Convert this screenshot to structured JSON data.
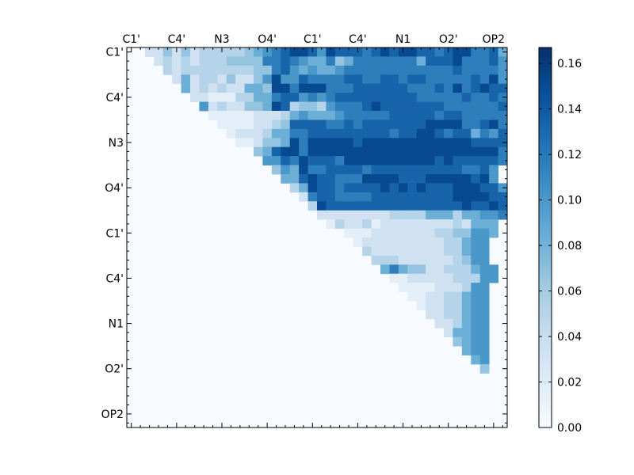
{
  "chart_data": {
    "type": "heatmap",
    "title": "",
    "xlabel": "",
    "ylabel": "",
    "n_rows": 42,
    "n_cols": 42,
    "x_tick_labels": [
      "C1'",
      "C4'",
      "N3",
      "O4'",
      "C1'",
      "C4'",
      "N1",
      "O2'",
      "OP2"
    ],
    "y_tick_labels": [
      "C1'",
      "C4'",
      "N3",
      "O4'",
      "C1'",
      "C4'",
      "N1",
      "O2'",
      "OP2"
    ],
    "label_step": 5,
    "colorbar": {
      "colormap": "Blues",
      "range": [
        0.0,
        0.167
      ],
      "ticks": [
        "0.00",
        "0.02",
        "0.04",
        "0.06",
        "0.08",
        "0.10",
        "0.12",
        "0.14",
        "0.16"
      ],
      "tick_values": [
        0.0,
        0.02,
        0.04,
        0.06,
        0.08,
        0.1,
        0.12,
        0.14,
        0.16
      ]
    },
    "structure": "upper-triangular matrix (cells on and below the diagonal are 0)",
    "rows": [
      "..224242333334567899869888789899887899778544",
      "...2323233344447787655745777777758889777866",
      "....323333333344786565567777777777778777766",
      ".....2523324224696687777887788788777778796",
      "......5232322554997999777888888777879789888",
      ".......2211133557886767888888888777778778777",
      "........62322445983443677789888888877777787",
      ".........1111122235655567777788888788777779898",
      "..........111122348888778788888889999778979",
      "...........12223557788888888878899878857689",
      "............1124459799999899999999999988889",
      "..............458997999999999999999999999786",
      "...............6687988879999999999898888876",
      "................4659778888788888888887786",
      ".................558988777999988899999896",
      "..................359887888898989888999886",
      "...................27887777888888888999988",
      "....................3988888888888888898898",
      ".....................222222223333555355667",
      "......................1322312222222232555",
      "........................11122222223344665",
      ".........................122222222233566",
      "..........................32222222233566",
      "...........................3332222223466",
      "............................5754422333566",
      ".............................112222233366",
      "..............................1111222366",
      "...............................112233566",
      "................................12233566",
      ".................................2233566",
      "..................................223566",
      "...................................25566",
      "....................................4566",
      ".....................................566",
      "......................................56",
      ".......................................4",
      "........................................",
      "........................................",
      "........................................",
      "........................................",
      "........................................",
      "........................................"
    ],
    "cell_value_scale": "digit d encodes value d*0.0167"
  }
}
